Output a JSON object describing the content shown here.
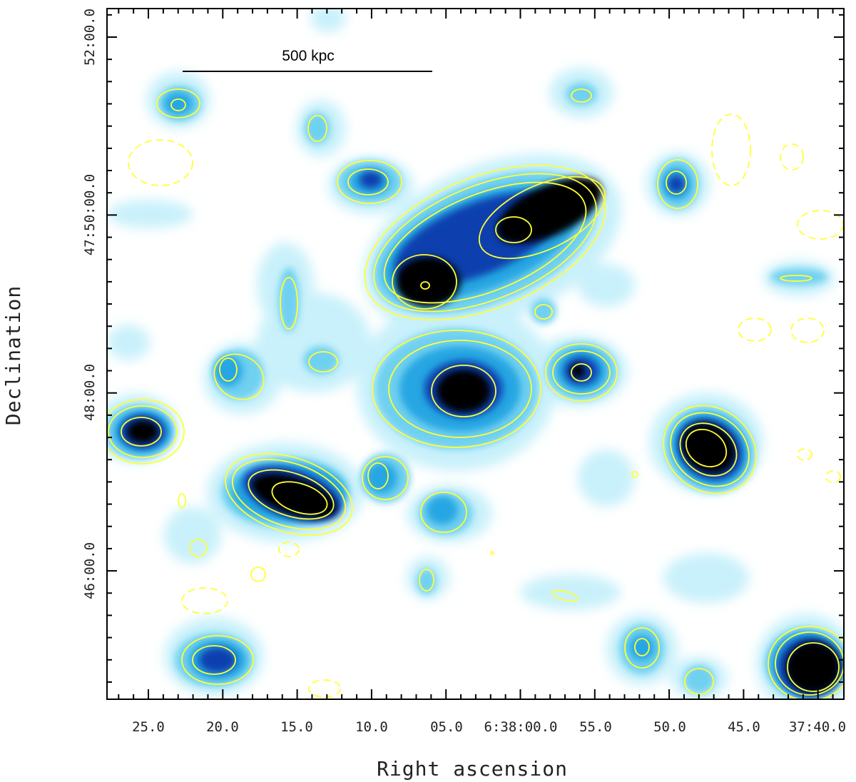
{
  "axes": {
    "xlabel": "Right ascension",
    "ylabel": "Declination",
    "x_ticks": [
      "25.0",
      "20.0",
      "15.0",
      "10.0",
      "05.0",
      "6:38:00.0",
      "55.0",
      "50.0",
      "45.0",
      "37:40.0"
    ],
    "y_ticks": [
      "52:00.0",
      "47:50:00.0",
      "48:00.0",
      "46:00.0"
    ]
  },
  "scale_bar": {
    "label": "500 kpc"
  },
  "colors": {
    "contour": "#ffff33",
    "faint": "#c9f1fb",
    "light": "#6fd0f0",
    "mid": "#27a6e2",
    "strong": "#0f3fae",
    "peak": "#000000"
  }
}
